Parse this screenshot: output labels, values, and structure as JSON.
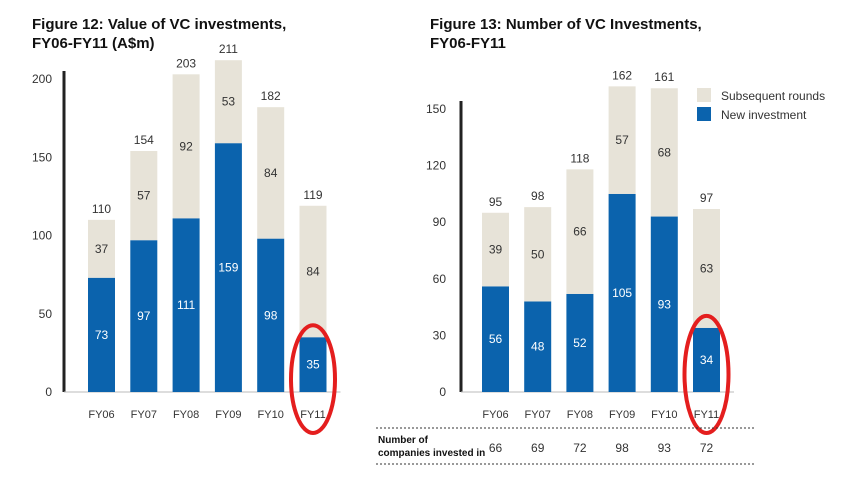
{
  "colors": {
    "new": "#0b63ad",
    "subsequent": "#e7e3d8",
    "axis": "#222222",
    "highlight": "#e41e1e"
  },
  "chart_data": [
    {
      "type": "bar",
      "stacked": true,
      "title_line1": "Figure 12: Value of VC investments,",
      "title_line2": "FY06-FY11 (A$m)",
      "categories": [
        "FY06",
        "FY07",
        "FY08",
        "FY09",
        "FY10",
        "FY11"
      ],
      "series": [
        {
          "name": "New investment",
          "values": [
            73,
            97,
            111,
            159,
            98,
            35
          ]
        },
        {
          "name": "Subsequent rounds",
          "values": [
            37,
            57,
            92,
            53,
            84,
            84
          ]
        }
      ],
      "totals": [
        110,
        154,
        203,
        211,
        182,
        119
      ],
      "ylim": [
        0,
        200
      ],
      "yticks": [
        0,
        50,
        100,
        150,
        200
      ],
      "highlight_category": "FY11",
      "legend": null
    },
    {
      "type": "bar",
      "stacked": true,
      "title_line1": "Figure 13: Number of VC Investments,",
      "title_line2": "FY06-FY11",
      "categories": [
        "FY06",
        "FY07",
        "FY08",
        "FY09",
        "FY10",
        "FY11"
      ],
      "series": [
        {
          "name": "New investment",
          "values": [
            56,
            48,
            52,
            105,
            93,
            34
          ]
        },
        {
          "name": "Subsequent rounds",
          "values": [
            39,
            50,
            66,
            57,
            68,
            63
          ]
        }
      ],
      "totals": [
        95,
        98,
        118,
        162,
        161,
        97
      ],
      "ylim": [
        0,
        150
      ],
      "yticks": [
        0,
        30,
        60,
        90,
        120,
        150
      ],
      "highlight_category": "FY11",
      "legend": {
        "placement": "top-right",
        "entries": [
          "Subsequent rounds",
          "New investment"
        ]
      },
      "table": {
        "row_label_line1": "Number of",
        "row_label_line2": "companies invested in",
        "values": [
          66,
          69,
          72,
          98,
          93,
          72
        ]
      }
    }
  ]
}
